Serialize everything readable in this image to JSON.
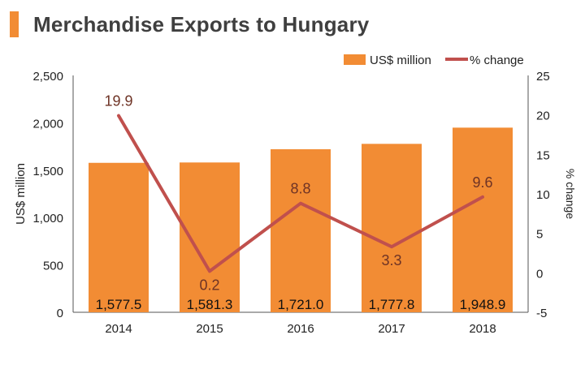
{
  "title": "Merchandise Exports to Hungary",
  "colors": {
    "accent": "#f28c34",
    "bar": "#f28c34",
    "line": "#c0504d",
    "title": "#3f3f3f"
  },
  "chart_data": {
    "type": "bar",
    "categories": [
      "2014",
      "2015",
      "2016",
      "2017",
      "2018"
    ],
    "series": [
      {
        "name": "US$ million",
        "type": "bar",
        "axis": "left",
        "values": [
          1577.5,
          1581.3,
          1721.0,
          1777.8,
          1948.9
        ],
        "labels": [
          "1,577.5",
          "1,581.3",
          "1,721.0",
          "1,777.8",
          "1,948.9"
        ]
      },
      {
        "name": "% change",
        "type": "line",
        "axis": "right",
        "values": [
          19.9,
          0.2,
          8.8,
          3.3,
          9.6
        ],
        "labels": [
          "19.9",
          "0.2",
          "8.8",
          "3.3",
          "9.6"
        ]
      }
    ],
    "ylabel": "US$ million",
    "y2label": "% change",
    "ylim": [
      0,
      2500
    ],
    "yticks": [
      "0",
      "500",
      "1,000",
      "1,500",
      "2,000",
      "2,500"
    ],
    "y2lim": [
      -5,
      25
    ],
    "y2ticks": [
      "-5",
      "0",
      "5",
      "10",
      "15",
      "20",
      "25"
    ],
    "legend_position": "top-right",
    "grid": false
  }
}
